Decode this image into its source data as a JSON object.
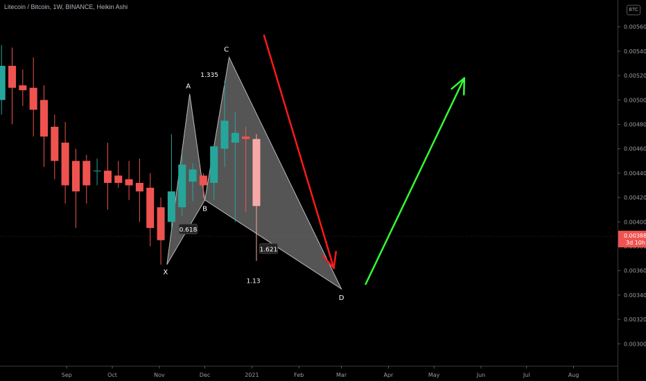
{
  "chart_data": {
    "type": "candlestick",
    "title": "Litecoin / Bitcoin, 1W, BINANCE, Heikin Ashi",
    "currency_badge": "BTC",
    "y_ticks": [
      0.0056,
      0.0054,
      0.0052,
      0.005,
      0.0048,
      0.0046,
      0.0044,
      0.0042,
      0.004,
      0.0038,
      0.0036,
      0.0034,
      0.0032,
      0.003
    ],
    "ylim": [
      0.00282,
      0.00582
    ],
    "x_start": "2020-07-19",
    "x_end": "2021-08-30",
    "x_labels": [
      {
        "date": "2020-09-01",
        "label": "Sep"
      },
      {
        "date": "2020-10-01",
        "label": "Oct"
      },
      {
        "date": "2020-11-01",
        "label": "Nov"
      },
      {
        "date": "2020-12-01",
        "label": "Dec"
      },
      {
        "date": "2021-01-01",
        "label": "2021"
      },
      {
        "date": "2021-02-01",
        "label": "Feb"
      },
      {
        "date": "2021-03-01",
        "label": "Mar"
      },
      {
        "date": "2021-04-01",
        "label": "Apr"
      },
      {
        "date": "2021-05-01",
        "label": "May"
      },
      {
        "date": "2021-06-01",
        "label": "Jun"
      },
      {
        "date": "2021-07-01",
        "label": "Jul"
      },
      {
        "date": "2021-08-01",
        "label": "Aug"
      }
    ],
    "candles": [
      {
        "date": "2020-07-20",
        "open": 0.005,
        "high": 0.00545,
        "low": 0.00488,
        "close": 0.00528
      },
      {
        "date": "2020-07-27",
        "open": 0.00528,
        "high": 0.00543,
        "low": 0.0048,
        "close": 0.0051
      },
      {
        "date": "2020-08-03",
        "open": 0.00512,
        "high": 0.00525,
        "low": 0.00495,
        "close": 0.00508
      },
      {
        "date": "2020-08-10",
        "open": 0.0051,
        "high": 0.00535,
        "low": 0.0047,
        "close": 0.00492
      },
      {
        "date": "2020-08-17",
        "open": 0.005,
        "high": 0.00512,
        "low": 0.00445,
        "close": 0.0047
      },
      {
        "date": "2020-08-24",
        "open": 0.00478,
        "high": 0.00488,
        "low": 0.00435,
        "close": 0.0045
      },
      {
        "date": "2020-08-31",
        "open": 0.00465,
        "high": 0.00482,
        "low": 0.00415,
        "close": 0.0043
      },
      {
        "date": "2020-09-07",
        "open": 0.0045,
        "high": 0.0046,
        "low": 0.00395,
        "close": 0.00425
      },
      {
        "date": "2020-09-14",
        "open": 0.0045,
        "high": 0.00455,
        "low": 0.00415,
        "close": 0.0043
      },
      {
        "date": "2020-09-21",
        "open": 0.00442,
        "high": 0.00452,
        "low": 0.0043,
        "close": 0.00442
      },
      {
        "date": "2020-09-28",
        "open": 0.00442,
        "high": 0.00465,
        "low": 0.0041,
        "close": 0.00432
      },
      {
        "date": "2020-10-05",
        "open": 0.00438,
        "high": 0.0045,
        "low": 0.00428,
        "close": 0.00432
      },
      {
        "date": "2020-10-12",
        "open": 0.00435,
        "high": 0.0045,
        "low": 0.00418,
        "close": 0.0043
      },
      {
        "date": "2020-10-19",
        "open": 0.00432,
        "high": 0.00452,
        "low": 0.004,
        "close": 0.00425
      },
      {
        "date": "2020-10-26",
        "open": 0.00428,
        "high": 0.0044,
        "low": 0.0038,
        "close": 0.00395
      },
      {
        "date": "2020-11-02",
        "open": 0.00412,
        "high": 0.0042,
        "low": 0.00365,
        "close": 0.00385
      },
      {
        "date": "2020-11-09",
        "open": 0.004,
        "high": 0.00472,
        "low": 0.00395,
        "close": 0.00425
      },
      {
        "date": "2020-11-16",
        "open": 0.00412,
        "high": 0.00455,
        "low": 0.00405,
        "close": 0.00447
      },
      {
        "date": "2020-11-23",
        "open": 0.00433,
        "high": 0.00448,
        "low": 0.00417,
        "close": 0.00443
      },
      {
        "date": "2020-11-30",
        "open": 0.00438,
        "high": 0.0044,
        "low": 0.0042,
        "close": 0.0043
      },
      {
        "date": "2020-12-07",
        "open": 0.00432,
        "high": 0.0046,
        "low": 0.00418,
        "close": 0.00462
      },
      {
        "date": "2020-12-14",
        "open": 0.0046,
        "high": 0.00515,
        "low": 0.00445,
        "close": 0.00483
      },
      {
        "date": "2020-12-21",
        "open": 0.00465,
        "high": 0.0049,
        "low": 0.004,
        "close": 0.00473
      },
      {
        "date": "2020-12-28",
        "open": 0.0047,
        "high": 0.00478,
        "low": 0.00408,
        "close": 0.00468
      },
      {
        "date": "2021-01-04",
        "open": 0.00468,
        "high": 0.00472,
        "low": 0.00368,
        "close": 0.00413
      }
    ],
    "harmonic_pattern": {
      "points": [
        {
          "label": "X",
          "date": "2020-11-06",
          "price": 0.00365
        },
        {
          "label": "A",
          "date": "2020-11-21",
          "price": 0.00505
        },
        {
          "label": "B",
          "date": "2020-12-01",
          "price": 0.00418
        },
        {
          "label": "C",
          "date": "2020-12-17",
          "price": 0.00535
        },
        {
          "label": "D",
          "date": "2021-03-01",
          "price": 0.00345
        }
      ],
      "ratios": [
        {
          "label": "0.618",
          "date": "2020-11-20",
          "price": 0.00393,
          "boxed": true
        },
        {
          "label": "1.335",
          "date": "2020-12-04",
          "price": 0.0052,
          "boxed": false
        },
        {
          "label": "1.621",
          "date": "2021-01-12",
          "price": 0.00377,
          "boxed": true
        },
        {
          "label": "1.13",
          "date": "2021-01-02",
          "price": 0.00351,
          "boxed": false
        }
      ]
    },
    "arrows": [
      {
        "name": "red-down-arrow",
        "color": "#ff1a1a",
        "from": {
          "date": "2021-01-09",
          "price": 0.00553
        },
        "to": {
          "date": "2021-02-24",
          "price": 0.00362
        }
      },
      {
        "name": "green-up-arrow",
        "color": "#33ff33",
        "from": {
          "date": "2021-03-17",
          "price": 0.00349
        },
        "to": {
          "date": "2021-05-21",
          "price": 0.00518
        }
      }
    ],
    "last_price": {
      "value": "0.003882",
      "countdown": "3d 10h",
      "price": 0.003882,
      "color": "#f05350"
    },
    "colors": {
      "up": "#26a69a",
      "down": "#ef5350",
      "last_candle": "#f7a9a8",
      "pattern_fill": "#9a9a9a"
    }
  }
}
